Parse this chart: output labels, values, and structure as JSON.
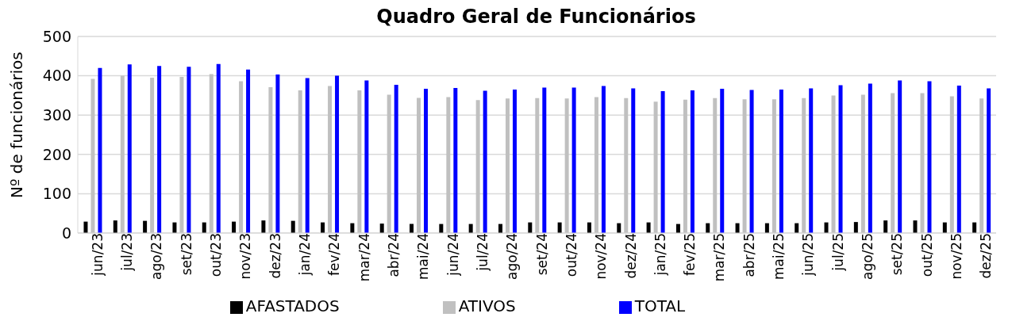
{
  "chart_data": {
    "type": "bar",
    "title": "Quadro Geral de Funcionários",
    "ylabel": "Nº de funcionários",
    "categories": [
      "jun/23",
      "jul/23",
      "ago/23",
      "set/23",
      "out/23",
      "nov/23",
      "dez/23",
      "jan/24",
      "fev/24",
      "mar/24",
      "abr/24",
      "mai/24",
      "jun/24",
      "jul/24",
      "ago/24",
      "set/24",
      "out/24",
      "nov/24",
      "dez/24",
      "jan/25",
      "fev/25",
      "mar/25",
      "abr/25",
      "mai/25",
      "jun/25",
      "jul/25",
      "ago/25",
      "set/25",
      "out/25",
      "nov/25",
      "dez/25"
    ],
    "series": [
      {
        "name": "AFASTADOS",
        "color": "#000000",
        "values": [
          29,
          32,
          31,
          27,
          27,
          29,
          32,
          31,
          27,
          25,
          24,
          23,
          23,
          23,
          23,
          27,
          27,
          27,
          25,
          27,
          23,
          25,
          25,
          25,
          25,
          27,
          28,
          32,
          32,
          27,
          27
        ]
      },
      {
        "name": "ATIVOS",
        "color": "#c0c0c0",
        "values": [
          392,
          400,
          395,
          397,
          404,
          386,
          371,
          363,
          374,
          363,
          352,
          344,
          346,
          338,
          342,
          343,
          342,
          346,
          343,
          334,
          339,
          343,
          340,
          340,
          343,
          350,
          352,
          356,
          356,
          348,
          342
        ]
      },
      {
        "name": "TOTAL",
        "color": "#0000ff",
        "values": [
          420,
          429,
          425,
          423,
          430,
          416,
          403,
          394,
          400,
          388,
          377,
          367,
          369,
          362,
          365,
          370,
          370,
          374,
          368,
          361,
          363,
          367,
          364,
          365,
          368,
          376,
          380,
          388,
          386,
          375,
          368
        ]
      }
    ],
    "ylim": [
      0,
      500
    ],
    "yticks": [
      0,
      100,
      200,
      300,
      400,
      500
    ],
    "grid": "y",
    "legend": "bottom"
  }
}
